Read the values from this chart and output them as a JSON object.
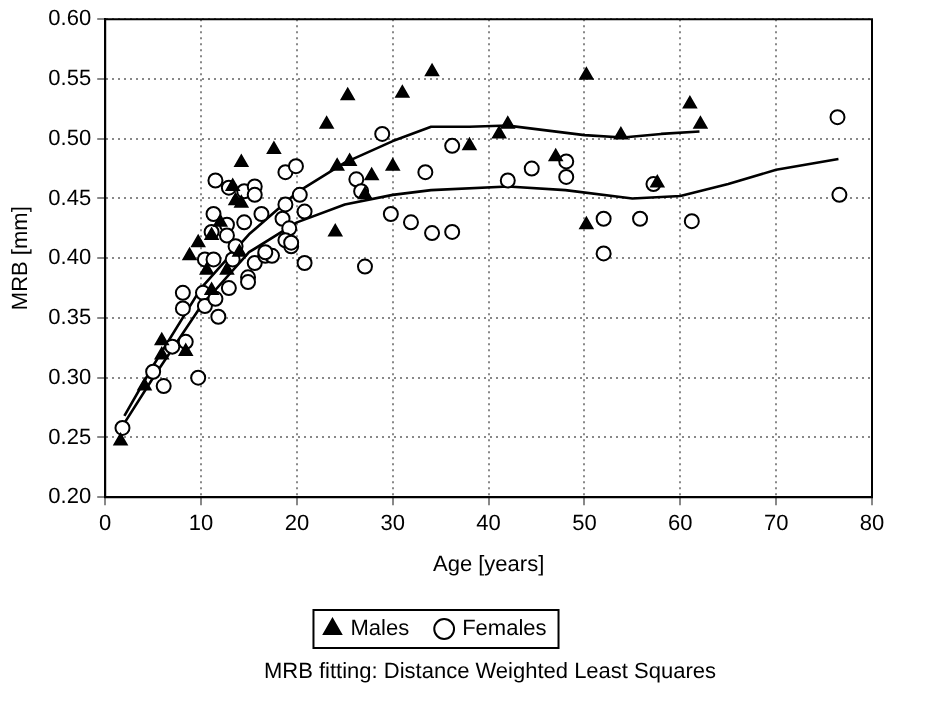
{
  "chart_data": {
    "type": "scatter",
    "xlabel": "Age [years]",
    "ylabel": "MRB [mm]",
    "xlim": [
      0,
      80
    ],
    "xticks": [
      0,
      10,
      20,
      30,
      40,
      50,
      60,
      70,
      80
    ],
    "ylim": [
      0.2,
      0.6
    ],
    "yticks": [
      {
        "value": 0.2,
        "label": "0.20"
      },
      {
        "value": 0.25,
        "label": "0.25"
      },
      {
        "value": 0.3,
        "label": "0.30"
      },
      {
        "value": 0.35,
        "label": "0.35"
      },
      {
        "value": 0.4,
        "label": "0.40"
      },
      {
        "value": 0.45,
        "label": "0.45"
      },
      {
        "value": 0.5,
        "label": "0.50"
      },
      {
        "value": 0.55,
        "label": "0.55"
      },
      {
        "value": 0.6,
        "label": "0.60"
      }
    ],
    "grid": true,
    "legend": "bottom",
    "annotations": [
      "MRB fitting: Distance Weighted Least Squares"
    ],
    "series": [
      {
        "name": "Males",
        "type": "scatter",
        "marker": "triangle",
        "color": "#000000",
        "x": [
          1.6,
          4.1,
          5.9,
          5.9,
          8.4,
          8.8,
          10.6,
          11.1,
          12.7,
          14.0,
          9.7,
          11.1,
          12.0,
          13.3,
          13.6,
          14.2,
          14.2,
          17.6,
          23.1,
          25.3,
          24.2,
          25.5,
          24.0,
          27.1,
          27.8,
          30.0,
          31.0,
          34.1,
          50.2,
          61.0,
          62.1,
          53.8,
          42.0,
          41.1,
          38.0,
          47.0,
          50.2,
          57.6
        ],
        "values": [
          0.247,
          0.293,
          0.331,
          0.319,
          0.322,
          0.402,
          0.39,
          0.373,
          0.39,
          0.405,
          0.413,
          0.419,
          0.43,
          0.46,
          0.448,
          0.446,
          0.48,
          0.491,
          0.512,
          0.536,
          0.477,
          0.481,
          0.422,
          0.453,
          0.469,
          0.477,
          0.538,
          0.556,
          0.553,
          0.529,
          0.512,
          0.503,
          0.512,
          0.504,
          0.494,
          0.485,
          0.428,
          0.463
        ]
      },
      {
        "name": "Females",
        "type": "scatter",
        "marker": "circle",
        "color": "#000000",
        "x": [
          1.8,
          5.0,
          6.1,
          7.0,
          8.4,
          9.7,
          10.2,
          8.1,
          8.1,
          10.4,
          11.8,
          11.5,
          12.9,
          10.4,
          11.3,
          13.3,
          14.9,
          14.9,
          15.6,
          16.7,
          17.4,
          19.4,
          20.8,
          27.1,
          11.5,
          12.9,
          14.5,
          15.6,
          15.6,
          11.3,
          16.3,
          12.7,
          14.5,
          12.7,
          11.1,
          13.6,
          16.7,
          18.8,
          19.9,
          18.8,
          20.3,
          20.8,
          18.5,
          19.2,
          18.8,
          19.4,
          26.2,
          26.7,
          28.9,
          33.4,
          29.8,
          31.9,
          34.1,
          36.2,
          36.2,
          42.0,
          44.5,
          48.1,
          48.1,
          57.2,
          52.0,
          55.8,
          61.2,
          52.0,
          76.4,
          76.6
        ],
        "values": [
          0.258,
          0.305,
          0.293,
          0.326,
          0.33,
          0.3,
          0.371,
          0.371,
          0.358,
          0.36,
          0.351,
          0.366,
          0.375,
          0.399,
          0.399,
          0.399,
          0.384,
          0.38,
          0.396,
          0.402,
          0.402,
          0.41,
          0.396,
          0.393,
          0.465,
          0.459,
          0.456,
          0.46,
          0.453,
          0.437,
          0.437,
          0.428,
          0.43,
          0.419,
          0.422,
          0.41,
          0.405,
          0.472,
          0.477,
          0.445,
          0.453,
          0.439,
          0.433,
          0.425,
          0.415,
          0.413,
          0.466,
          0.456,
          0.504,
          0.472,
          0.437,
          0.43,
          0.421,
          0.422,
          0.494,
          0.465,
          0.475,
          0.481,
          0.468,
          0.462,
          0.433,
          0.433,
          0.431,
          0.404,
          0.518,
          0.453
        ]
      },
      {
        "type": "line",
        "marker": "none",
        "color": "#000000",
        "x": [
          2,
          5,
          10,
          15,
          20,
          25,
          30,
          34,
          38,
          42,
          46,
          50,
          54,
          58,
          62
        ],
        "values": [
          0.268,
          0.31,
          0.375,
          0.42,
          0.455,
          0.48,
          0.498,
          0.51,
          0.51,
          0.511,
          0.507,
          0.503,
          0.501,
          0.504,
          0.506
        ]
      },
      {
        "type": "line",
        "marker": "none",
        "color": "#000000",
        "x": [
          2,
          5,
          10,
          15,
          20,
          25,
          30,
          34,
          42,
          48,
          55,
          60,
          65,
          70,
          76.5
        ],
        "values": [
          0.262,
          0.3,
          0.36,
          0.405,
          0.43,
          0.445,
          0.453,
          0.457,
          0.46,
          0.457,
          0.45,
          0.452,
          0.462,
          0.474,
          0.483
        ]
      }
    ]
  }
}
